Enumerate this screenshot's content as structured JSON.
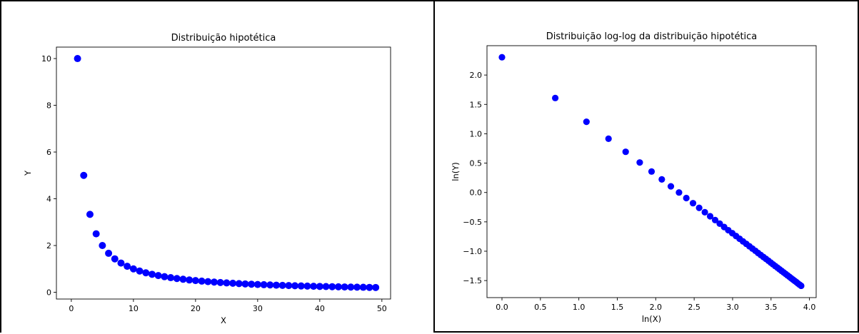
{
  "chart_data": [
    {
      "type": "scatter",
      "title": "Distribuição hipotética",
      "xlabel": "X",
      "ylabel": "Y",
      "xlim": [
        -2.4,
        51.4
      ],
      "ylim": [
        -0.29,
        10.49
      ],
      "xticks": [
        0,
        10,
        20,
        30,
        40,
        50
      ],
      "yticks": [
        0,
        2,
        4,
        6,
        8,
        10
      ],
      "xtick_labels": [
        "0",
        "10",
        "20",
        "30",
        "40",
        "50"
      ],
      "ytick_labels": [
        "0",
        "2",
        "4",
        "6",
        "8",
        "10"
      ],
      "grid": false,
      "color": "#0000ff",
      "x": [
        1,
        2,
        3,
        4,
        5,
        6,
        7,
        8,
        9,
        10,
        11,
        12,
        13,
        14,
        15,
        16,
        17,
        18,
        19,
        20,
        21,
        22,
        23,
        24,
        25,
        26,
        27,
        28,
        29,
        30,
        31,
        32,
        33,
        34,
        35,
        36,
        37,
        38,
        39,
        40,
        41,
        42,
        43,
        44,
        45,
        46,
        47,
        48,
        49
      ],
      "y": [
        10,
        5,
        3.333,
        2.5,
        2,
        1.667,
        1.429,
        1.25,
        1.111,
        1,
        0.909,
        0.833,
        0.769,
        0.714,
        0.667,
        0.625,
        0.588,
        0.556,
        0.526,
        0.5,
        0.476,
        0.455,
        0.435,
        0.417,
        0.4,
        0.385,
        0.37,
        0.357,
        0.345,
        0.333,
        0.323,
        0.313,
        0.303,
        0.294,
        0.286,
        0.278,
        0.27,
        0.263,
        0.256,
        0.25,
        0.244,
        0.238,
        0.233,
        0.227,
        0.222,
        0.217,
        0.213,
        0.208,
        0.204
      ]
    },
    {
      "type": "scatter",
      "title": "Distribuição log-log da distribuição hipotética",
      "xlabel": "ln(X)",
      "ylabel": "ln(Y)",
      "xlim": [
        -0.195,
        4.087
      ],
      "ylim": [
        -1.79,
        2.5
      ],
      "xticks": [
        0,
        0.5,
        1,
        1.5,
        2,
        2.5,
        3,
        3.5,
        4
      ],
      "yticks": [
        -1.5,
        -1,
        -0.5,
        0,
        0.5,
        1,
        1.5,
        2
      ],
      "xtick_labels": [
        "0.0",
        "0.5",
        "1.0",
        "1.5",
        "2.0",
        "2.5",
        "3.0",
        "3.5",
        "4.0"
      ],
      "ytick_labels": [
        "−1.5",
        "−1.0",
        "−0.5",
        "0.0",
        "0.5",
        "1.0",
        "1.5",
        "2.0"
      ],
      "grid": false,
      "color": "#0000ff",
      "x": [
        0,
        0.693,
        1.099,
        1.386,
        1.609,
        1.792,
        1.946,
        2.079,
        2.197,
        2.303,
        2.398,
        2.485,
        2.565,
        2.639,
        2.708,
        2.773,
        2.833,
        2.89,
        2.944,
        2.996,
        3.045,
        3.091,
        3.135,
        3.178,
        3.219,
        3.258,
        3.296,
        3.332,
        3.367,
        3.401,
        3.434,
        3.466,
        3.497,
        3.526,
        3.555,
        3.584,
        3.611,
        3.638,
        3.664,
        3.689,
        3.714,
        3.738,
        3.761,
        3.784,
        3.807,
        3.829,
        3.85,
        3.871,
        3.892
      ],
      "y": [
        2.303,
        1.609,
        1.204,
        0.916,
        0.693,
        0.511,
        0.357,
        0.223,
        0.105,
        0,
        -0.095,
        -0.182,
        -0.262,
        -0.336,
        -0.405,
        -0.47,
        -0.531,
        -0.588,
        -0.642,
        -0.693,
        -0.742,
        -0.788,
        -0.833,
        -0.875,
        -0.916,
        -0.956,
        -0.993,
        -1.03,
        -1.065,
        -1.099,
        -1.131,
        -1.163,
        -1.194,
        -1.224,
        -1.253,
        -1.281,
        -1.308,
        -1.335,
        -1.361,
        -1.386,
        -1.411,
        -1.435,
        -1.459,
        -1.482,
        -1.504,
        -1.526,
        -1.548,
        -1.569,
        -1.589
      ]
    }
  ]
}
